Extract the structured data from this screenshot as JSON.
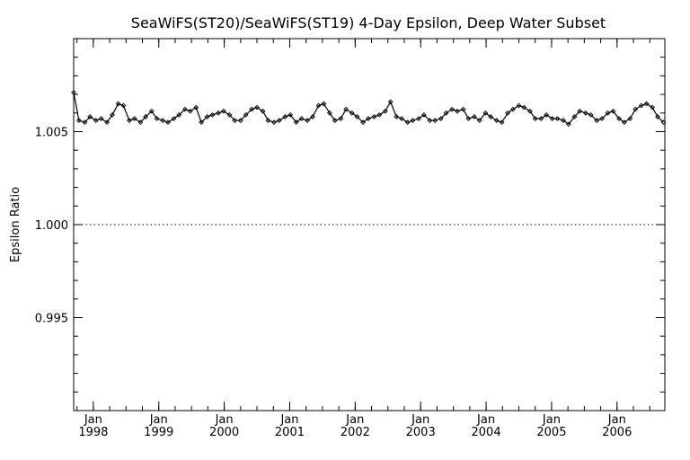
{
  "chart_data": {
    "type": "line",
    "title": "SeaWiFS(ST20)/SeaWiFS(ST19) 4-Day Epsilon, Deep Water Subset",
    "xlabel": "",
    "ylabel": "Epsilon Ratio",
    "xlim": [
      1997.7,
      2006.73
    ],
    "ylim": [
      0.99,
      1.01
    ],
    "y_ticks": [
      {
        "value": 0.995,
        "label": "0.995"
      },
      {
        "value": 1.0,
        "label": "1.000"
      },
      {
        "value": 1.005,
        "label": "1.005"
      }
    ],
    "x_ticks": [
      {
        "value": 1998,
        "month": "Jan",
        "year": "1998"
      },
      {
        "value": 1999,
        "month": "Jan",
        "year": "1999"
      },
      {
        "value": 2000,
        "month": "Jan",
        "year": "2000"
      },
      {
        "value": 2001,
        "month": "Jan",
        "year": "2001"
      },
      {
        "value": 2002,
        "month": "Jan",
        "year": "2002"
      },
      {
        "value": 2003,
        "month": "Jan",
        "year": "2003"
      },
      {
        "value": 2004,
        "month": "Jan",
        "year": "2004"
      },
      {
        "value": 2005,
        "month": "Jan",
        "year": "2005"
      },
      {
        "value": 2006,
        "month": "Jan",
        "year": "2006"
      }
    ],
    "reference_line": {
      "y": 1.0,
      "style": "dotted"
    },
    "grid": false,
    "series": [
      {
        "x": [
          1997.7,
          1997.78,
          1997.87,
          1997.95,
          1998.04,
          1998.12,
          1998.21,
          1998.29,
          1998.38,
          1998.46,
          1998.55,
          1998.63,
          1998.72,
          1998.8,
          1998.89,
          1998.97,
          1999.06,
          1999.14,
          1999.23,
          1999.31,
          1999.4,
          1999.48,
          1999.57,
          1999.65,
          1999.74,
          1999.82,
          1999.91,
          1999.99,
          2000.08,
          2000.16,
          2000.25,
          2000.33,
          2000.42,
          2000.5,
          2000.59,
          2000.67,
          2000.76,
          2000.84,
          2000.93,
          2001.01,
          2001.1,
          2001.18,
          2001.27,
          2001.35,
          2001.44,
          2001.52,
          2001.61,
          2001.69,
          2001.78,
          2001.86,
          2001.95,
          2002.03,
          2002.12,
          2002.2,
          2002.29,
          2002.37,
          2002.46,
          2002.54,
          2002.63,
          2002.71,
          2002.8,
          2002.88,
          2002.97,
          2003.05,
          2003.14,
          2003.22,
          2003.31,
          2003.39,
          2003.48,
          2003.56,
          2003.65,
          2003.73,
          2003.82,
          2003.9,
          2003.99,
          2004.07,
          2004.16,
          2004.24,
          2004.33,
          2004.41,
          2004.5,
          2004.58,
          2004.67,
          2004.75,
          2004.84,
          2004.92,
          2005.01,
          2005.09,
          2005.18,
          2005.26,
          2005.35,
          2005.43,
          2005.52,
          2005.6,
          2005.69,
          2005.77,
          2005.86,
          2005.94,
          2006.03,
          2006.11,
          2006.2,
          2006.28,
          2006.37,
          2006.45,
          2006.54,
          2006.62,
          2006.71
        ],
        "values": [
          1.0071,
          1.0056,
          1.0055,
          1.0058,
          1.0056,
          1.0057,
          1.0055,
          1.0059,
          1.0065,
          1.0064,
          1.0056,
          1.0057,
          1.0055,
          1.0058,
          1.0061,
          1.0057,
          1.0056,
          1.0055,
          1.0057,
          1.0059,
          1.0062,
          1.0061,
          1.0063,
          1.0055,
          1.0058,
          1.0059,
          1.006,
          1.0061,
          1.0059,
          1.0056,
          1.0056,
          1.0059,
          1.0062,
          1.0063,
          1.0061,
          1.0056,
          1.0055,
          1.0056,
          1.0058,
          1.0059,
          1.0055,
          1.0057,
          1.0056,
          1.0058,
          1.0064,
          1.0065,
          1.006,
          1.0056,
          1.0057,
          1.0062,
          1.006,
          1.0058,
          1.0055,
          1.0057,
          1.0058,
          1.0059,
          1.0061,
          1.0066,
          1.0058,
          1.0057,
          1.0055,
          1.0056,
          1.0057,
          1.0059,
          1.0056,
          1.0056,
          1.0057,
          1.006,
          1.0062,
          1.0061,
          1.0062,
          1.0057,
          1.0058,
          1.0056,
          1.006,
          1.0058,
          1.0056,
          1.0055,
          1.006,
          1.0062,
          1.0064,
          1.0063,
          1.0061,
          1.0057,
          1.0057,
          1.0059,
          1.0057,
          1.0057,
          1.0056,
          1.0054,
          1.0058,
          1.0061,
          1.006,
          1.0059,
          1.0056,
          1.0057,
          1.006,
          1.0061,
          1.0057,
          1.0055,
          1.0057,
          1.0062,
          1.0064,
          1.0065,
          1.0063,
          1.0058,
          1.0055
        ]
      }
    ]
  }
}
